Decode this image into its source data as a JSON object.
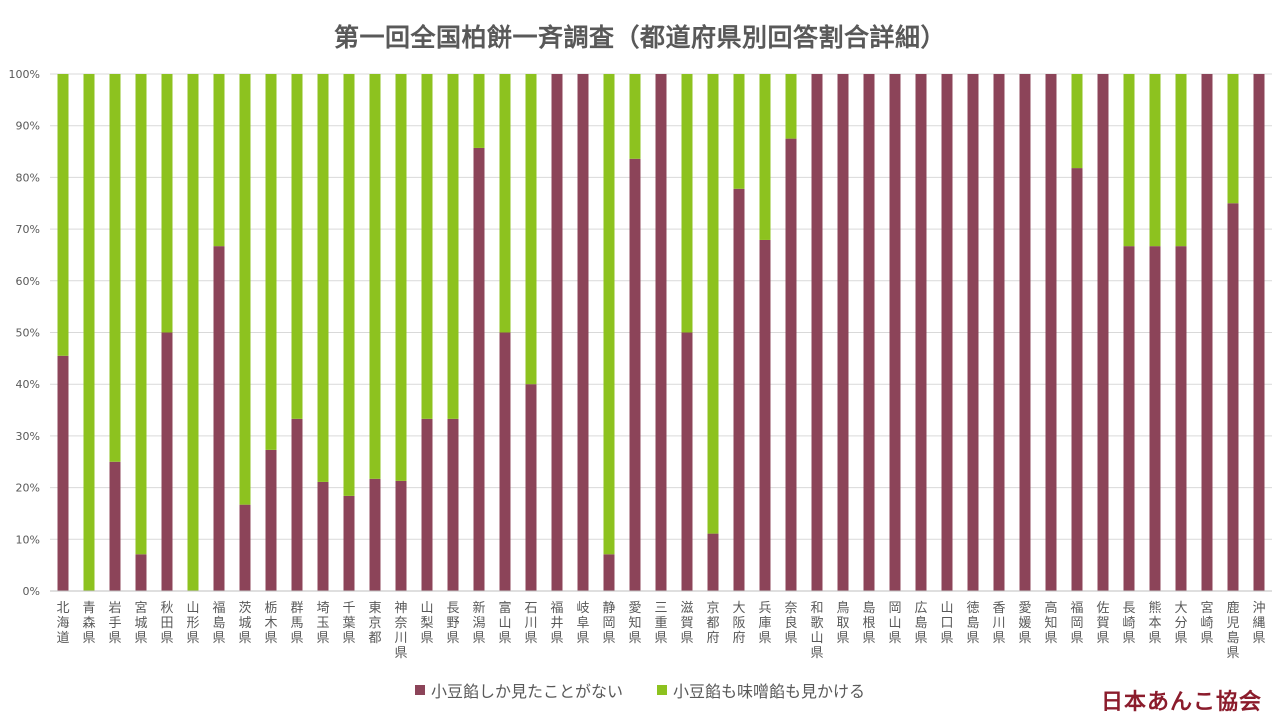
{
  "title": "第一回全国柏餅一斉調査（都道府県別回答割合詳細）",
  "brand": "日本あんこ協会",
  "colors": {
    "red_bean_only": "#8c4459",
    "both": "#8dc21f",
    "grid": "#d9d9d9",
    "axis_text": "#595959"
  },
  "chart_data": {
    "type": "bar",
    "stacked": "percent",
    "title": "第一回全国柏餅一斉調査（都道府県別回答割合詳細）",
    "categories": [
      "北海道",
      "青森県",
      "岩手県",
      "宮城県",
      "秋田県",
      "山形県",
      "福島県",
      "茨城県",
      "栃木県",
      "群馬県",
      "埼玉県",
      "千葉県",
      "東京都",
      "神奈川県",
      "山梨県",
      "長野県",
      "新潟県",
      "富山県",
      "石川県",
      "福井県",
      "岐阜県",
      "静岡県",
      "愛知県",
      "三重県",
      "滋賀県",
      "京都府",
      "大阪府",
      "兵庫県",
      "奈良県",
      "和歌山県",
      "鳥取県",
      "島根県",
      "岡山県",
      "広島県",
      "山口県",
      "徳島県",
      "香川県",
      "愛媛県",
      "高知県",
      "福岡県",
      "佐賀県",
      "長崎県",
      "熊本県",
      "大分県",
      "宮崎県",
      "鹿児島県",
      "沖縄県"
    ],
    "series": [
      {
        "name": "小豆餡しか見たことがない",
        "values": [
          45.5,
          0,
          25,
          7.1,
          50,
          0,
          66.7,
          16.7,
          27.3,
          33.3,
          21.1,
          18.4,
          21.7,
          21.3,
          33.3,
          33.3,
          85.7,
          50,
          40,
          100,
          100,
          7.1,
          83.6,
          100,
          50,
          11.1,
          77.8,
          67.9,
          87.5,
          100,
          100,
          100,
          100,
          100,
          100,
          100,
          100,
          100,
          100,
          81.8,
          100,
          66.7,
          66.7,
          66.7,
          100,
          75,
          100
        ]
      },
      {
        "name": "小豆餡も味噌餡も見かける",
        "values": [
          54.5,
          100,
          75,
          92.9,
          50,
          100,
          33.3,
          83.3,
          72.7,
          66.7,
          78.9,
          81.6,
          78.3,
          78.7,
          66.7,
          66.7,
          14.3,
          50,
          60,
          0,
          0,
          92.9,
          16.4,
          0,
          50,
          88.9,
          22.2,
          32.1,
          12.5,
          0,
          0,
          0,
          0,
          0,
          0,
          0,
          0,
          0,
          0,
          18.2,
          0,
          33.3,
          33.3,
          33.3,
          0,
          25,
          0
        ]
      }
    ],
    "y_ticks": [
      "0%",
      "10%",
      "20%",
      "30%",
      "40%",
      "50%",
      "60%",
      "70%",
      "80%",
      "90%",
      "100%"
    ],
    "ylim": [
      0,
      100
    ],
    "grid": true,
    "legend_position": "bottom"
  }
}
